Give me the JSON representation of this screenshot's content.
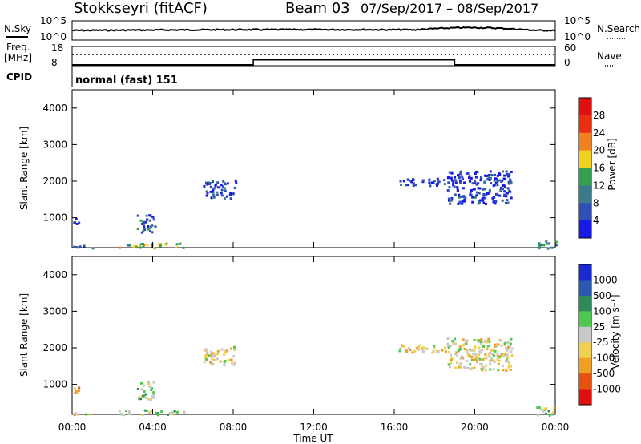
{
  "header": {
    "title": "Stokkseyri (fitACF)",
    "beam": "Beam 03",
    "dates": "07/Sep/2017 – 08/Sep/2017"
  },
  "top_panels": {
    "nsky_label": "N.Sky",
    "nsky_tick_top": "10^5",
    "nsky_tick_bottom": "10^0",
    "nsearch_label": "N.Search",
    "freq_label_1": "Freq.",
    "freq_label_2": "[MHz]",
    "freq_tick_top": "18",
    "freq_tick_bottom": "8",
    "nave_tick_top": "60",
    "nave_tick_bottom": "0",
    "nave_label": "Nave",
    "cpid_label": "CPID",
    "cpid_text": "normal (fast) 151"
  },
  "colors": {
    "power": [
      "#1a1ae6",
      "#2e4fb4",
      "#3a7a8a",
      "#33a050",
      "#f0d020",
      "#f08020",
      "#e83010",
      "#e01010"
    ],
    "velocity": [
      "#e01010",
      "#e85010",
      "#f0a020",
      "#f0d050",
      "#c8c8c8",
      "#50c850",
      "#2e8a5a",
      "#2a5ab0",
      "#1a2ad0"
    ]
  },
  "chart_data": [
    {
      "type": "heatmap",
      "name": "power",
      "ylabel": "Slant Range [km]",
      "y_ticks": [
        "1000",
        "2000",
        "3000",
        "4000"
      ],
      "ylim": [
        180,
        4500
      ],
      "colorbar_label": "Power [dB]",
      "colorbar_ticks": [
        "4",
        "8",
        "12",
        "16",
        "20",
        "24",
        "28"
      ],
      "clim": [
        0,
        32
      ],
      "regions": [
        {
          "t": [
            0.0,
            1.0
          ],
          "range": [
            180,
            260
          ],
          "value": 10
        },
        {
          "t": [
            2.3,
            5.6
          ],
          "range": [
            190,
            320
          ],
          "value": 18
        },
        {
          "t": [
            0.05,
            0.35
          ],
          "range": [
            750,
            1000
          ],
          "value": 6
        },
        {
          "t": [
            3.2,
            4.1
          ],
          "range": [
            600,
            1100
          ],
          "value": 9
        },
        {
          "t": [
            6.5,
            8.1
          ],
          "range": [
            1550,
            2050
          ],
          "value": 6
        },
        {
          "t": [
            16.2,
            18.6
          ],
          "range": [
            1900,
            2100
          ],
          "value": 5
        },
        {
          "t": [
            18.6,
            21.8
          ],
          "range": [
            1400,
            2300
          ],
          "value": 6
        },
        {
          "t": [
            23.0,
            24.0
          ],
          "range": [
            180,
            400
          ],
          "value": 12
        }
      ]
    },
    {
      "type": "heatmap",
      "name": "velocity",
      "ylabel": "Slant Range [km]",
      "y_ticks": [
        "1000",
        "2000",
        "3000",
        "4000"
      ],
      "ylim": [
        180,
        4500
      ],
      "colorbar_label": "Velocity [m s⁻¹]",
      "colorbar_ticks": [
        "1000",
        "500",
        "100",
        "25",
        "-25",
        "-100",
        "-500",
        "-1000"
      ],
      "clim": [
        -1000,
        1000
      ],
      "regions": [
        {
          "t": [
            0.0,
            1.0
          ],
          "range": [
            180,
            260
          ],
          "value": 100
        },
        {
          "t": [
            2.3,
            5.6
          ],
          "range": [
            190,
            320
          ],
          "value": 150
        },
        {
          "t": [
            0.05,
            0.35
          ],
          "range": [
            750,
            1000
          ],
          "value": -300
        },
        {
          "t": [
            3.2,
            4.1
          ],
          "range": [
            600,
            1100
          ],
          "value": 150
        },
        {
          "t": [
            6.5,
            8.1
          ],
          "range": [
            1550,
            2050
          ],
          "value": 0
        },
        {
          "t": [
            16.2,
            18.6
          ],
          "range": [
            1900,
            2100
          ],
          "value": 0
        },
        {
          "t": [
            18.6,
            21.8
          ],
          "range": [
            1400,
            2300
          ],
          "value": 0
        },
        {
          "t": [
            23.0,
            24.0
          ],
          "range": [
            180,
            400
          ],
          "value": 150
        }
      ]
    }
  ],
  "x_axis": {
    "label": "Time UT",
    "ticks": [
      "00:00",
      "04:00",
      "08:00",
      "12:00",
      "16:00",
      "20:00",
      "00:00"
    ]
  },
  "freq_series": {
    "segments": [
      [
        0,
        9,
        8.5
      ],
      [
        9,
        19,
        11
      ],
      [
        19,
        24,
        8.5
      ]
    ]
  }
}
